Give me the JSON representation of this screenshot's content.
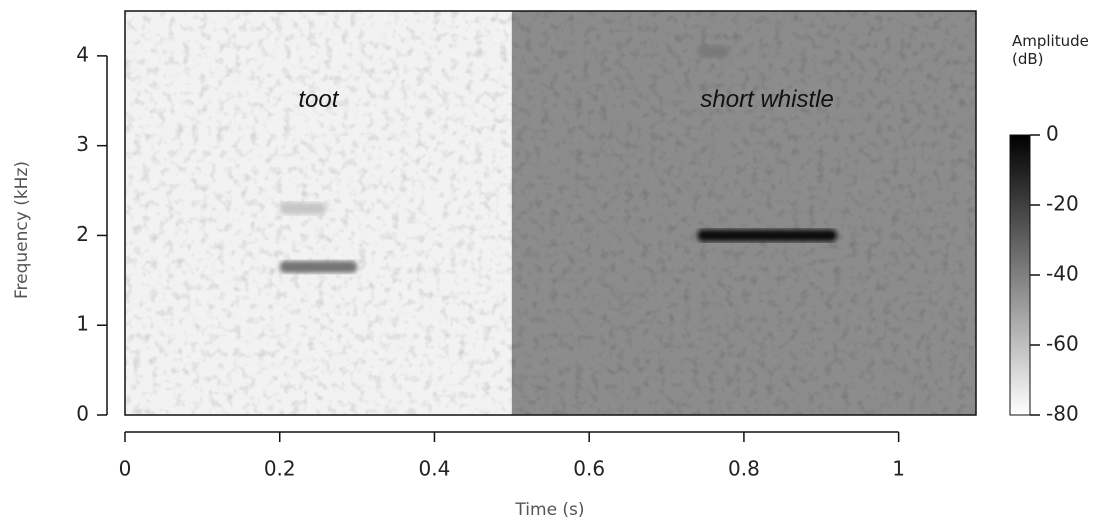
{
  "chart_data": {
    "type": "spectrogram",
    "xlabel": "Time (s)",
    "ylabel": "Frequency (kHz)",
    "xlim": [
      0,
      1.1
    ],
    "xticks": [
      0,
      0.2,
      0.4,
      0.6,
      0.8,
      1
    ],
    "ylim": [
      0,
      4.5
    ],
    "yticks": [
      0,
      1,
      2,
      3,
      4
    ],
    "colorbar_label": "Amplitude (dB)",
    "clim": [
      -80,
      0
    ],
    "cticks": [
      0,
      -20,
      -40,
      -60,
      -80
    ],
    "segments": [
      {
        "t": [
          0,
          0.5
        ],
        "db": -76
      },
      {
        "t": [
          0.5,
          1.1
        ],
        "db": -44
      }
    ],
    "calls": [
      {
        "t": [
          0.2,
          0.3
        ],
        "freq": 1.65,
        "db": -36
      },
      {
        "t": [
          0.74,
          0.92
        ],
        "freq": 2.0,
        "db": -4
      },
      {
        "t": [
          0.74,
          0.78
        ],
        "freq": 4.05,
        "db": -38
      },
      {
        "t": [
          0.2,
          0.26
        ],
        "freq": 2.3,
        "db": -62
      }
    ],
    "annotations": [
      {
        "text": "toot",
        "x": 0.25,
        "y": 3.5
      },
      {
        "text": "short whistle",
        "x": 0.83,
        "y": 3.5
      }
    ]
  }
}
